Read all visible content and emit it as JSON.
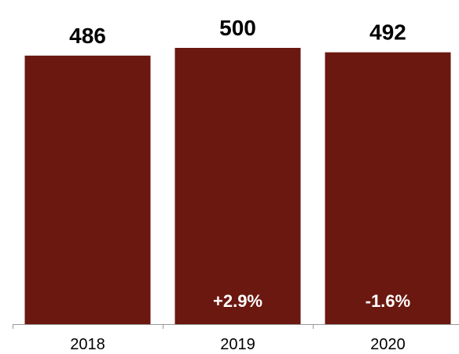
{
  "chart_data": {
    "type": "bar",
    "categories": [
      "2018",
      "2019",
      "2020"
    ],
    "values": [
      486,
      500,
      492
    ],
    "value_labels": [
      "486",
      "500",
      "492"
    ],
    "change_labels": [
      "",
      "+2.9%",
      "-1.6%"
    ],
    "title": "",
    "xlabel": "",
    "ylabel": "",
    "ylim": [
      0,
      500
    ],
    "grid": false,
    "legend": "none",
    "colors": {
      "bar": "#6b1810",
      "axis": "#999999",
      "value_text": "#000000",
      "change_text": "#ffffff"
    }
  }
}
